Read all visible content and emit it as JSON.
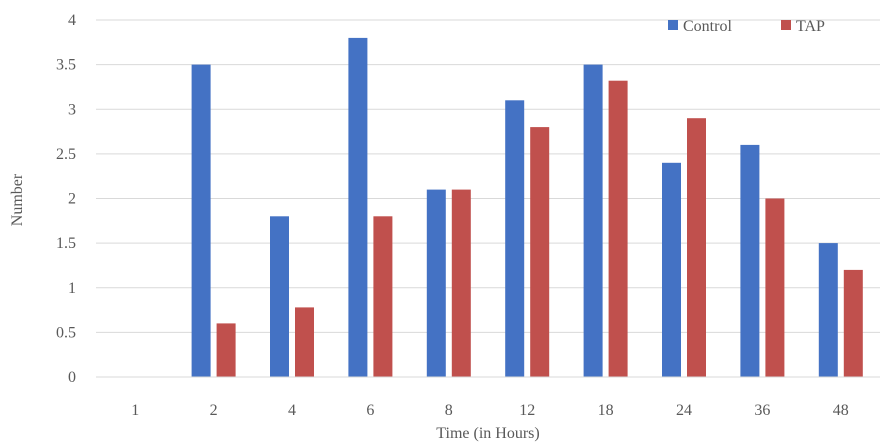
{
  "chart_data": {
    "type": "bar",
    "title": "",
    "xlabel": "Time (in Hours)",
    "ylabel": "Number",
    "categories": [
      "1",
      "2",
      "4",
      "6",
      "8",
      "12",
      "18",
      "24",
      "36",
      "48"
    ],
    "series": [
      {
        "name": "Control",
        "color": "#4472C4",
        "values": [
          0,
          3.5,
          1.8,
          3.8,
          2.1,
          3.1,
          3.5,
          2.4,
          2.6,
          1.5
        ]
      },
      {
        "name": "TAP",
        "color": "#C0504D",
        "values": [
          0,
          0.6,
          0.78,
          1.8,
          2.1,
          2.8,
          3.32,
          2.9,
          2.0,
          1.2
        ]
      }
    ],
    "yticks": [
      "0",
      "0.5",
      "1",
      "1.5",
      "2",
      "2.5",
      "3",
      "3.5",
      "4"
    ],
    "ylim": [
      0,
      4
    ],
    "grid": true,
    "legend": "top-right"
  }
}
